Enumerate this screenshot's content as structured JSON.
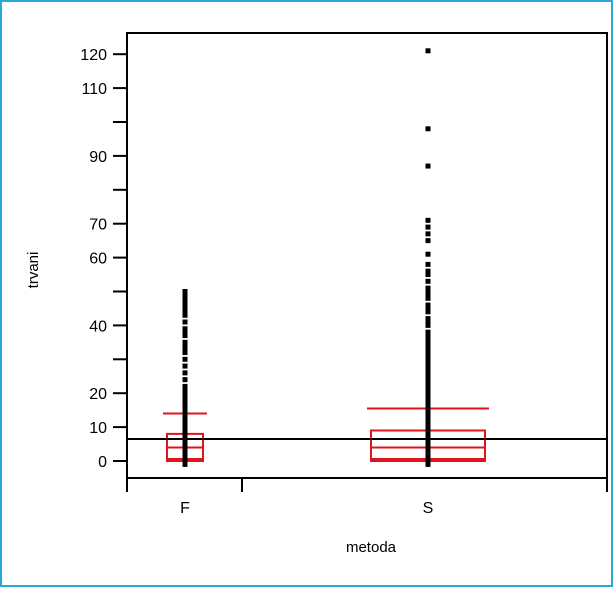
{
  "frame_color": "#2aa6d8",
  "colors": {
    "box": "#e0141c",
    "points": "#000000",
    "axes": "#000000",
    "mean_line": "#000000"
  },
  "chart_data": {
    "type": "box",
    "xlabel": "metoda",
    "ylabel": "trvani",
    "categories": [
      "F",
      "S"
    ],
    "y_tick_labels": [
      0,
      10,
      20,
      40,
      60,
      70,
      90,
      110,
      120
    ],
    "y_minor_ticks": [
      30,
      50,
      80,
      100
    ],
    "ylim": [
      -5,
      124
    ],
    "reference_line": 6.5,
    "boxes": [
      {
        "category": "F",
        "q1": 0,
        "median": 4,
        "q3": 8,
        "whisker_low": 0,
        "whisker_high": 14,
        "lower_cap": 0
      },
      {
        "category": "S",
        "q1": 0,
        "median": 4,
        "q3": 9,
        "whisker_low": 0,
        "whisker_high": 15.5,
        "lower_cap": 0
      }
    ],
    "points": [
      {
        "category": "F",
        "values": [
          -1,
          0,
          1,
          2,
          3,
          4,
          5,
          6,
          7,
          8,
          9,
          10,
          11,
          12,
          13,
          14,
          15,
          16,
          17,
          18,
          19,
          20,
          21,
          22,
          24,
          26,
          28,
          30,
          32,
          33,
          34,
          35,
          37,
          38,
          39,
          41,
          43,
          44,
          45,
          46,
          47,
          48,
          49,
          50
        ]
      },
      {
        "category": "S",
        "values": [
          -1,
          0,
          1,
          2,
          3,
          4,
          5,
          6,
          7,
          8,
          9,
          10,
          11,
          12,
          13,
          14,
          15,
          16,
          17,
          18,
          19,
          20,
          21,
          22,
          23,
          24,
          25,
          26,
          27,
          28,
          29,
          30,
          31,
          32,
          33,
          34,
          35,
          36,
          37,
          38,
          40,
          41,
          42,
          44,
          45,
          46,
          48,
          49,
          50,
          51,
          53,
          55,
          56,
          58,
          61,
          65,
          67,
          69,
          71,
          87,
          98,
          121
        ]
      }
    ]
  }
}
